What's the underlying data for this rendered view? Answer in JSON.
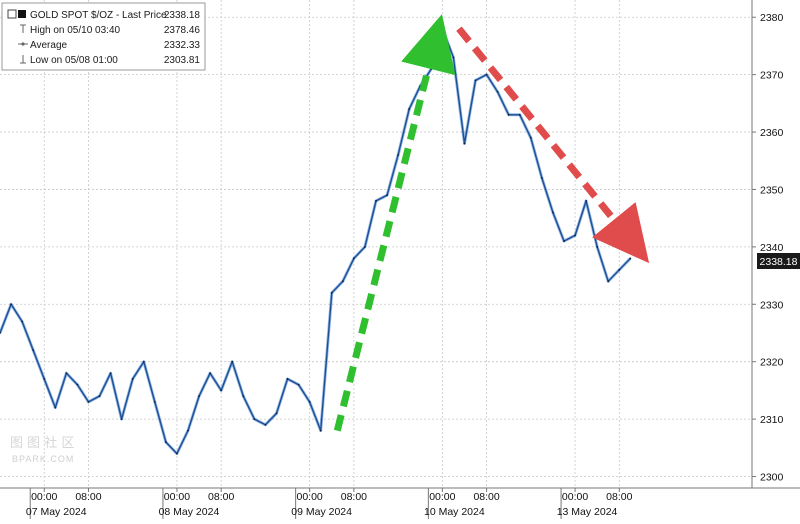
{
  "legend": {
    "title": "GOLD SPOT $/OZ - Last Price",
    "last_price": "2338.18",
    "rows": [
      {
        "label": "High on 05/10 03:40",
        "value": "2378.46",
        "icon": "high-marker-icon"
      },
      {
        "label": "Average",
        "value": "2332.33",
        "icon": "average-marker-icon"
      },
      {
        "label": "Low on 05/08 01:00",
        "value": "2303.81",
        "icon": "low-marker-icon"
      }
    ]
  },
  "last_price_tag": "2338.18",
  "watermark": {
    "glyphs": "图 图 社 区",
    "text": "BPARK.COM"
  },
  "colors": {
    "series": "#1d4f91",
    "series_highlight": "#3a7bd5",
    "up_arrow": "#2fbf2f",
    "down_arrow": "#e04b4b",
    "grid": "#c8c8c8",
    "price_tag_bg": "#1a1a1a",
    "price_tag_fg": "#ffffff"
  },
  "chart_data": {
    "type": "line",
    "title": "GOLD SPOT $/OZ",
    "ylim": [
      2298,
      2383
    ],
    "y_ticks": [
      2300,
      2310,
      2320,
      2330,
      2340,
      2350,
      2360,
      2370,
      2380
    ],
    "x_range": [
      -8,
      128
    ],
    "x_ticks": [
      {
        "x": 0,
        "label": "00:00"
      },
      {
        "x": 8,
        "label": "08:00"
      },
      {
        "x": 24,
        "label": "00:00"
      },
      {
        "x": 32,
        "label": "08:00"
      },
      {
        "x": 48,
        "label": "00:00"
      },
      {
        "x": 56,
        "label": "08:00"
      },
      {
        "x": 72,
        "label": "00:00"
      },
      {
        "x": 80,
        "label": "08:00"
      },
      {
        "x": 96,
        "label": "00:00"
      },
      {
        "x": 104,
        "label": "08:00"
      }
    ],
    "date_labels": [
      {
        "x": 0,
        "label": "07 May 2024"
      },
      {
        "x": 24,
        "label": "08 May 2024"
      },
      {
        "x": 48,
        "label": "09 May 2024"
      },
      {
        "x": 72,
        "label": "10 May 2024"
      },
      {
        "x": 96,
        "label": "13 May 2024"
      }
    ],
    "series": [
      {
        "x": [
          -8,
          -6,
          -4,
          -2,
          0,
          2,
          4,
          6,
          8,
          10,
          12,
          14,
          16,
          18,
          20,
          22,
          24,
          26,
          28,
          30,
          32,
          34,
          36,
          38,
          40,
          42,
          44,
          46,
          48,
          50,
          52,
          54,
          56,
          58,
          60,
          62,
          64,
          66,
          68,
          70,
          72,
          74,
          76,
          78,
          80,
          82,
          84,
          86,
          88,
          90,
          92,
          94,
          96,
          98,
          100,
          102,
          104,
          106
        ],
        "y": [
          2325,
          2330,
          2327,
          2322,
          2317,
          2312,
          2318,
          2316,
          2313,
          2314,
          2318,
          2310,
          2317,
          2320,
          2313,
          2306,
          2304,
          2308,
          2314,
          2318,
          2315,
          2320,
          2314,
          2310,
          2309,
          2311,
          2317,
          2316,
          2313,
          2308,
          2332,
          2334,
          2338,
          2340,
          2348,
          2349,
          2356,
          2364,
          2368,
          2371,
          2378,
          2373,
          2358,
          2369,
          2370,
          2367,
          2363,
          2363,
          2359,
          2352,
          2346,
          2341,
          2342,
          2348,
          2340,
          2334,
          2336,
          2338
        ]
      }
    ],
    "arrows": [
      {
        "direction": "up",
        "from": {
          "x": 53,
          "y": 2308
        },
        "to": {
          "x": 71,
          "y": 2377
        }
      },
      {
        "direction": "down",
        "from": {
          "x": 75,
          "y": 2378
        },
        "to": {
          "x": 107,
          "y": 2340
        }
      }
    ]
  }
}
